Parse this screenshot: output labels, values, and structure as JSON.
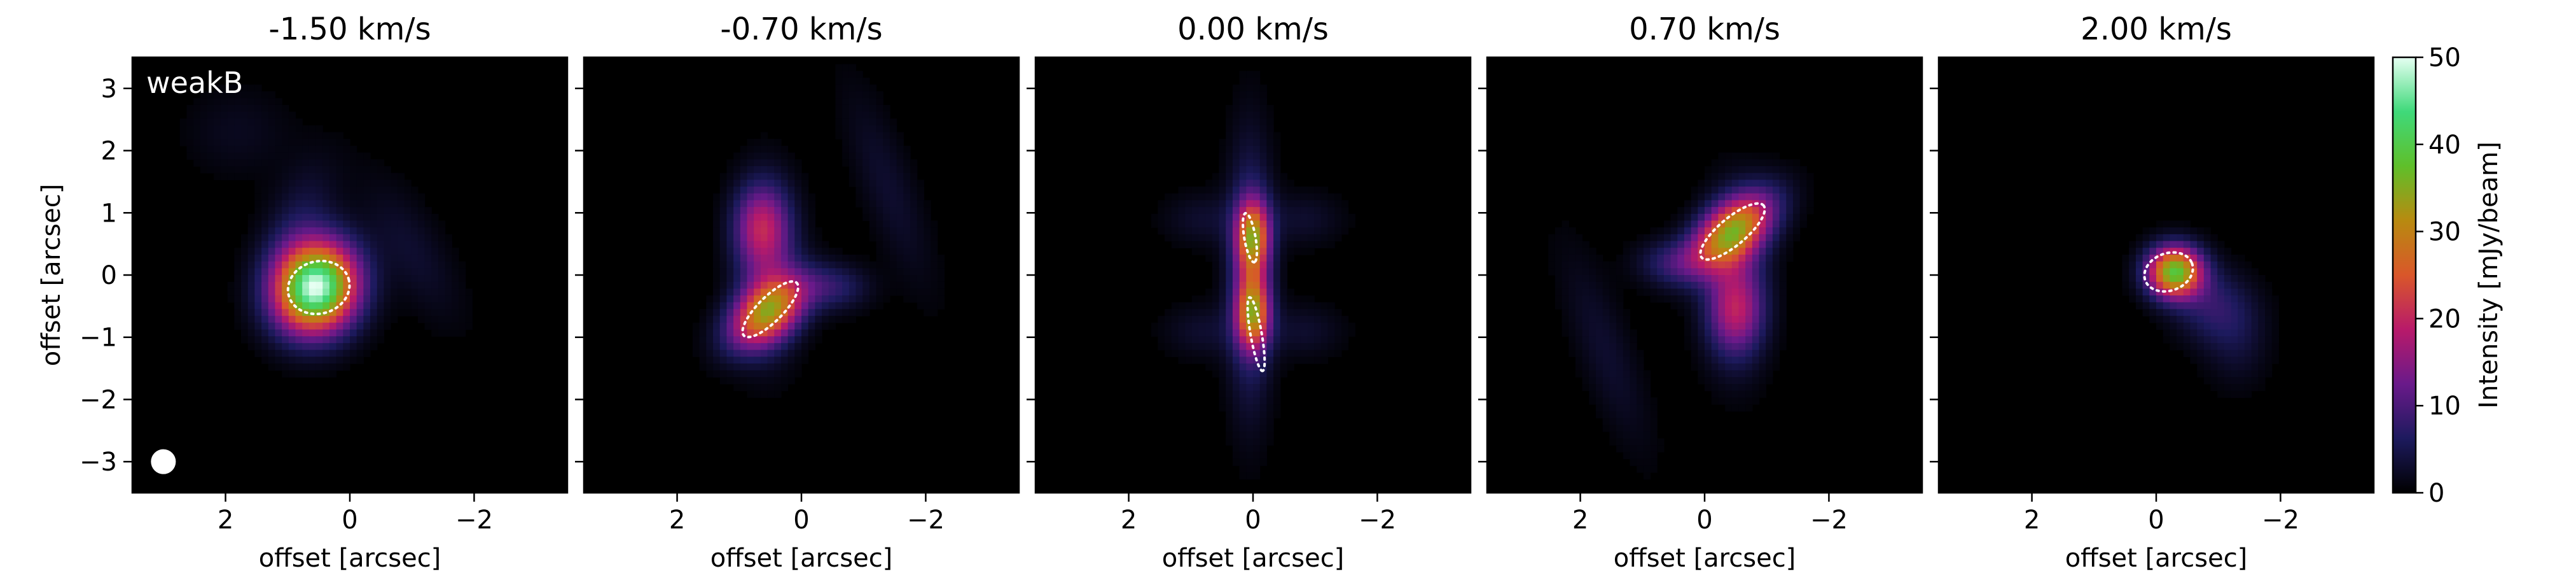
{
  "chart_data": {
    "type": "heatmap",
    "panel_titles": [
      "-1.50 km/s",
      "-0.70 km/s",
      "0.00 km/s",
      "0.70 km/s",
      "2.00 km/s"
    ],
    "panel_velocities_kms": [
      -1.5,
      -0.7,
      0.0,
      0.7,
      2.0
    ],
    "annotation": "weakB",
    "xlabel": "offset [arcsec]",
    "ylabel": "offset [arcsec]",
    "xlim": [
      3.5,
      -3.5
    ],
    "ylim": [
      -3.5,
      3.5
    ],
    "x_ticks": [
      2,
      0,
      -2
    ],
    "x_tick_labels": [
      "2",
      "0",
      "−2"
    ],
    "y_ticks": [
      3,
      2,
      1,
      0,
      -1,
      -2,
      -3
    ],
    "y_tick_labels": [
      "3",
      "2",
      "1",
      "0",
      "−1",
      "−2",
      "−3"
    ],
    "colorbar": {
      "label": "Intensity [mJy/beam]",
      "range": [
        0,
        50
      ],
      "ticks": [
        0,
        10,
        20,
        30,
        40,
        50
      ],
      "tick_labels": [
        "0",
        "10",
        "20",
        "30",
        "40",
        "50"
      ],
      "colormap_stops": [
        "#000000",
        "#1d1a5e",
        "#6a1a8a",
        "#b81a6a",
        "#d9572a",
        "#b88a10",
        "#5fbf2a",
        "#3fd97a",
        "#e6fff2"
      ]
    },
    "beam": {
      "x": 3.0,
      "y": -3.0,
      "radius": 0.2
    },
    "panels": [
      {
        "blobs": [
          {
            "x": 0.55,
            "y": -0.2,
            "sx": 0.45,
            "sy": 0.5,
            "amp": 50,
            "angle": 20
          },
          {
            "x": 0.8,
            "y": 0.9,
            "sx": 0.35,
            "sy": 0.7,
            "amp": 4,
            "angle": 20
          },
          {
            "x": -1.0,
            "y": 0.4,
            "sx": 0.35,
            "sy": 0.9,
            "amp": 3,
            "angle": -30
          },
          {
            "x": 1.8,
            "y": 2.3,
            "sx": 0.6,
            "sy": 0.5,
            "amp": 2,
            "angle": 0
          }
        ],
        "contours": [
          {
            "cx": 0.5,
            "cy": -0.2,
            "rx": 0.5,
            "ry": 0.42,
            "angle": -15
          }
        ]
      },
      {
        "blobs": [
          {
            "x": 0.55,
            "y": -0.6,
            "sx": 0.3,
            "sy": 0.5,
            "amp": 28,
            "angle": 50
          },
          {
            "x": 0.65,
            "y": 0.8,
            "sx": 0.3,
            "sy": 0.45,
            "amp": 14,
            "angle": 0
          },
          {
            "x": 0.55,
            "y": 0.1,
            "sx": 0.35,
            "sy": 0.9,
            "amp": 9,
            "angle": 0
          },
          {
            "x": -0.5,
            "y": -0.2,
            "sx": 0.4,
            "sy": 0.25,
            "amp": 7,
            "angle": 0
          },
          {
            "x": -1.4,
            "y": 1.4,
            "sx": 0.3,
            "sy": 1.2,
            "amp": 3,
            "angle": -20
          }
        ],
        "contours": [
          {
            "cx": 0.5,
            "cy": -0.55,
            "rx": 0.6,
            "ry": 0.2,
            "angle": -45
          }
        ]
      },
      {
        "blobs": [
          {
            "x": 0.0,
            "y": 0.6,
            "sx": 0.18,
            "sy": 0.4,
            "amp": 26,
            "angle": 0
          },
          {
            "x": 0.0,
            "y": -0.6,
            "sx": 0.18,
            "sy": 0.4,
            "amp": 26,
            "angle": 0
          },
          {
            "x": 0.05,
            "y": 0.0,
            "sx": 0.25,
            "sy": 1.4,
            "amp": 10,
            "angle": 0
          },
          {
            "x": 0.8,
            "y": 0.9,
            "sx": 0.45,
            "sy": 0.3,
            "amp": 3,
            "angle": 0
          },
          {
            "x": -0.8,
            "y": 0.9,
            "sx": 0.45,
            "sy": 0.3,
            "amp": 3,
            "angle": 0
          },
          {
            "x": 0.8,
            "y": -0.9,
            "sx": 0.45,
            "sy": 0.3,
            "amp": 3,
            "angle": 0
          },
          {
            "x": -0.8,
            "y": -0.9,
            "sx": 0.45,
            "sy": 0.3,
            "amp": 3,
            "angle": 0
          }
        ],
        "contours": [
          {
            "cx": 0.05,
            "cy": 0.6,
            "rx": 0.4,
            "ry": 0.09,
            "angle": 80
          },
          {
            "cx": -0.05,
            "cy": -0.95,
            "rx": 0.6,
            "ry": 0.09,
            "angle": 80
          }
        ]
      },
      {
        "blobs": [
          {
            "x": -0.45,
            "y": 0.7,
            "sx": 0.3,
            "sy": 0.55,
            "amp": 30,
            "angle": 50
          },
          {
            "x": -0.5,
            "y": -0.6,
            "sx": 0.3,
            "sy": 0.45,
            "amp": 12,
            "angle": 0
          },
          {
            "x": -0.5,
            "y": -0.1,
            "sx": 0.35,
            "sy": 0.9,
            "amp": 9,
            "angle": 0
          },
          {
            "x": 0.5,
            "y": 0.2,
            "sx": 0.4,
            "sy": 0.25,
            "amp": 7,
            "angle": 0
          },
          {
            "x": 1.6,
            "y": -1.2,
            "sx": 0.3,
            "sy": 1.2,
            "amp": 3,
            "angle": -20
          }
        ],
        "contours": [
          {
            "cx": -0.45,
            "cy": 0.7,
            "rx": 0.65,
            "ry": 0.22,
            "angle": -40
          }
        ]
      },
      {
        "blobs": [
          {
            "x": -0.3,
            "y": 0.05,
            "sx": 0.3,
            "sy": 0.28,
            "amp": 38,
            "angle": 0
          },
          {
            "x": -0.9,
            "y": -0.5,
            "sx": 0.45,
            "sy": 0.4,
            "amp": 7,
            "angle": 30
          },
          {
            "x": -1.3,
            "y": -1.1,
            "sx": 0.35,
            "sy": 0.5,
            "amp": 3,
            "angle": 0
          }
        ],
        "contours": [
          {
            "cx": -0.2,
            "cy": 0.05,
            "rx": 0.4,
            "ry": 0.3,
            "angle": -20
          }
        ]
      }
    ]
  }
}
